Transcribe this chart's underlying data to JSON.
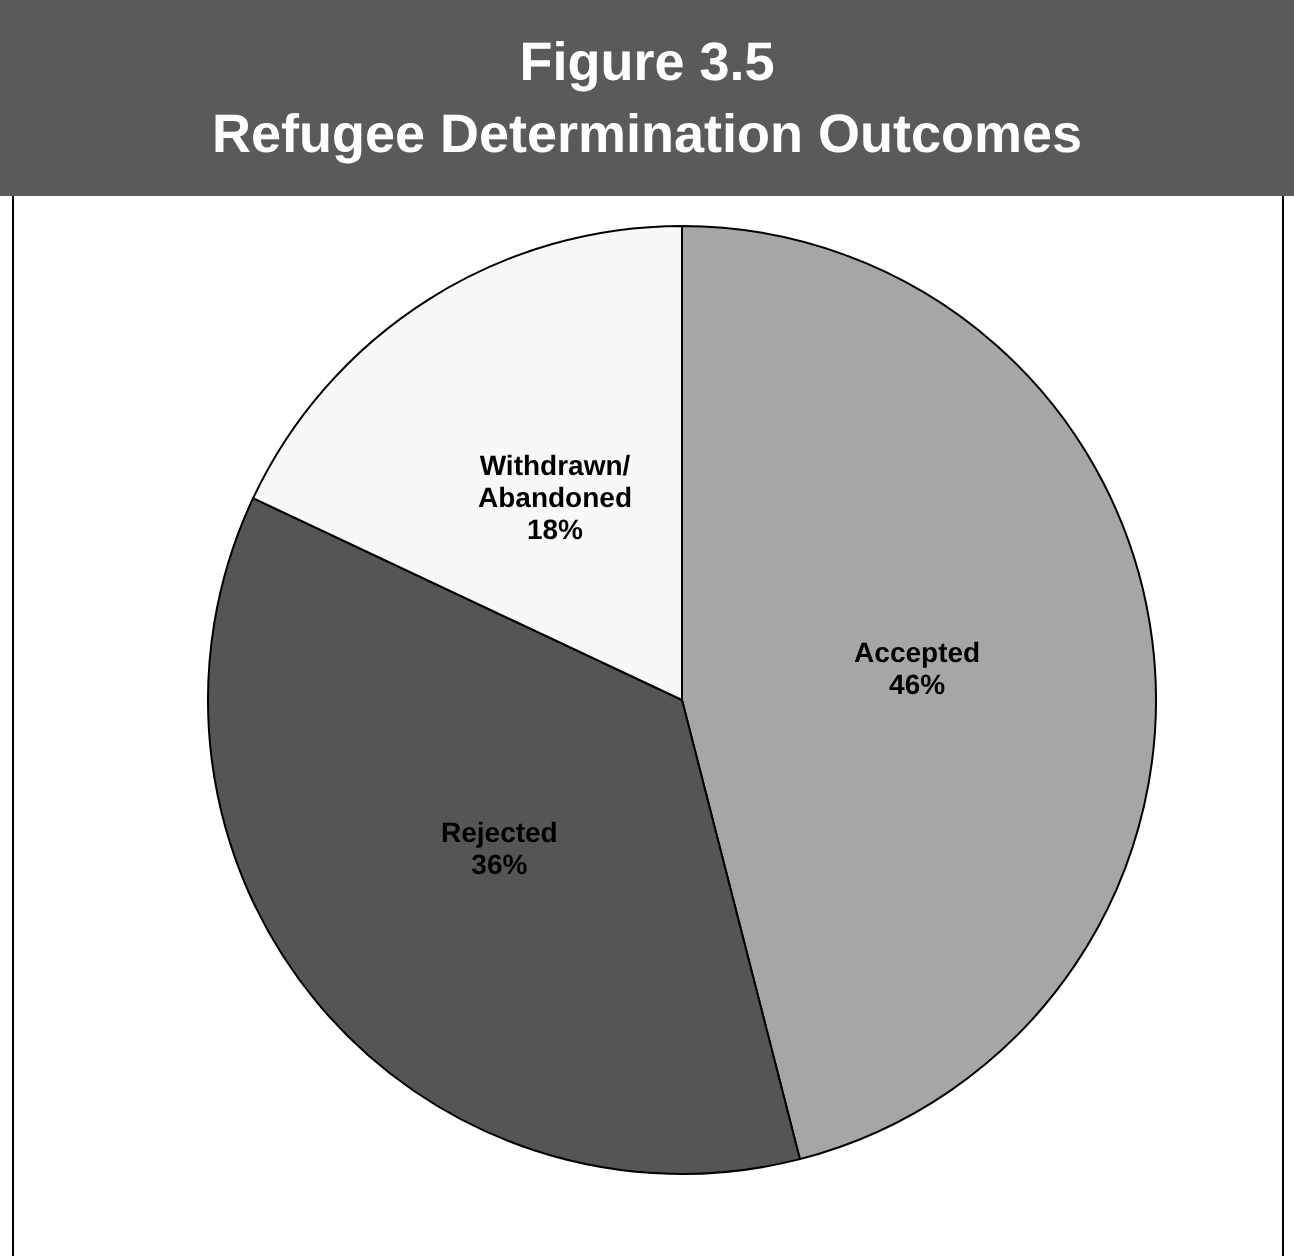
{
  "chart_data": {
    "type": "pie",
    "title": "Figure 3.5\nRefugee Determination Outcomes",
    "categories": [
      "Accepted",
      "Rejected",
      "Withdrawn/ Abandoned"
    ],
    "values": [
      46,
      36,
      18
    ],
    "colors": [
      "#a6a6a6",
      "#555555",
      "#f8f8f8"
    ],
    "value_labels": [
      "46%",
      "36%",
      "18%"
    ],
    "legend": false
  }
}
